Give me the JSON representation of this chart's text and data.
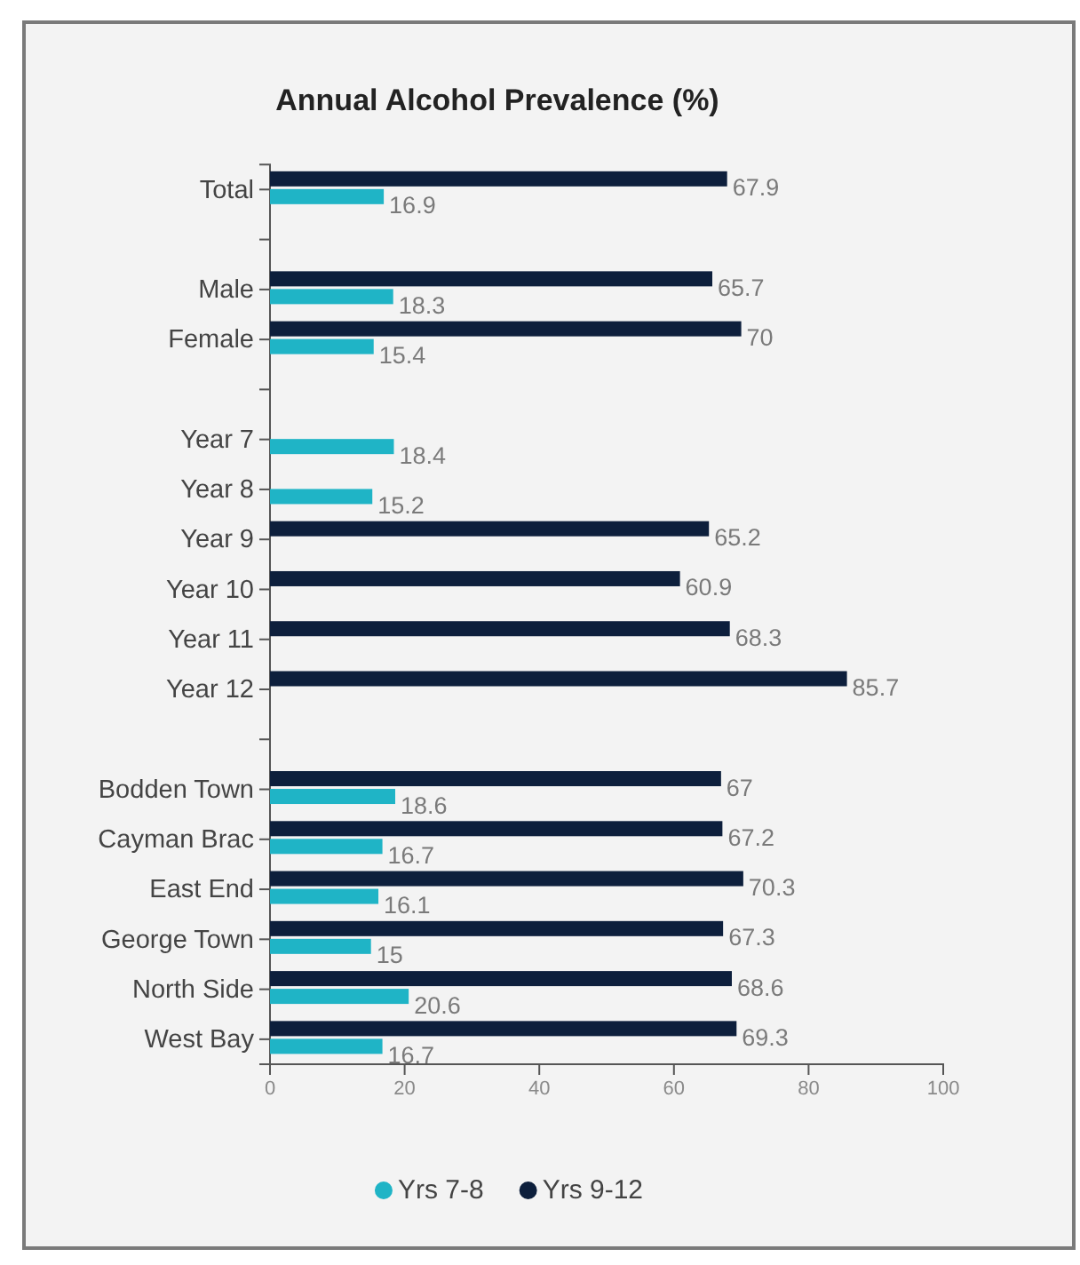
{
  "chart_data": {
    "type": "bar",
    "orientation": "horizontal",
    "title": "Annual Alcohol Prevalence (%)",
    "categories": [
      "Total",
      null,
      "Male",
      "Female",
      null,
      "Year 7",
      "Year 8",
      "Year 9",
      "Year 10",
      "Year 11",
      "Year 12",
      null,
      "Bodden Town",
      "Cayman Brac",
      "East End",
      "George Town",
      "North Side",
      "West Bay"
    ],
    "series": [
      {
        "name": "Yrs 7-8",
        "color": "#1fb4c6",
        "values": [
          16.9,
          null,
          18.3,
          15.4,
          null,
          18.4,
          15.2,
          null,
          null,
          null,
          null,
          null,
          18.6,
          16.7,
          16.1,
          15,
          20.6,
          16.7
        ]
      },
      {
        "name": "Yrs 9-12",
        "color": "#0d1f3c",
        "values": [
          67.9,
          null,
          65.7,
          70,
          null,
          null,
          null,
          65.2,
          60.9,
          68.3,
          85.7,
          null,
          67,
          67.2,
          70.3,
          67.3,
          68.6,
          69.3
        ]
      }
    ],
    "xlim": [
      0,
      100
    ],
    "xticks": [
      0,
      20,
      40,
      60,
      80,
      100
    ],
    "data_labels": true,
    "legend": "bottom"
  }
}
